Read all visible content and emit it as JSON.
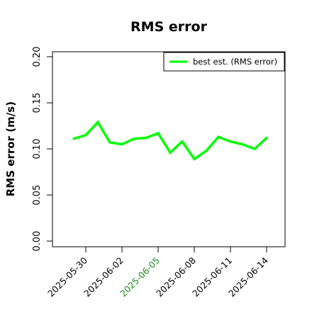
{
  "chart_data": {
    "type": "line",
    "title": "RMS error",
    "xlabel": "",
    "ylabel": "RMS error (m/s)",
    "ylim": [
      0,
      0.21
    ],
    "yticks": [
      "0.00",
      "0.05",
      "0.10",
      "0.15",
      "0.20"
    ],
    "xticks": [
      {
        "label": "2025-05-30",
        "color": "#000000"
      },
      {
        "label": "2025-06-02",
        "color": "#000000"
      },
      {
        "label": "2025-06-05",
        "color": "#228b22"
      },
      {
        "label": "2025-06-08",
        "color": "#000000"
      },
      {
        "label": "2025-06-11",
        "color": "#000000"
      },
      {
        "label": "2025-06-14",
        "color": "#000000"
      }
    ],
    "x": [
      "2025-05-29",
      "2025-05-30",
      "2025-05-31",
      "2025-06-01",
      "2025-06-02",
      "2025-06-03",
      "2025-06-04",
      "2025-06-05",
      "2025-06-06",
      "2025-06-07",
      "2025-06-08",
      "2025-06-09",
      "2025-06-10",
      "2025-06-11",
      "2025-06-12",
      "2025-06-13",
      "2025-06-14"
    ],
    "series": [
      {
        "name": "best est. (RMS error)",
        "color": "#00ff00",
        "values": [
          0.111,
          0.115,
          0.129,
          0.107,
          0.105,
          0.111,
          0.112,
          0.117,
          0.096,
          0.108,
          0.089,
          0.098,
          0.113,
          0.108,
          0.105,
          0.1,
          0.112
        ]
      }
    ],
    "legend_position": "top-right",
    "grid": false
  }
}
